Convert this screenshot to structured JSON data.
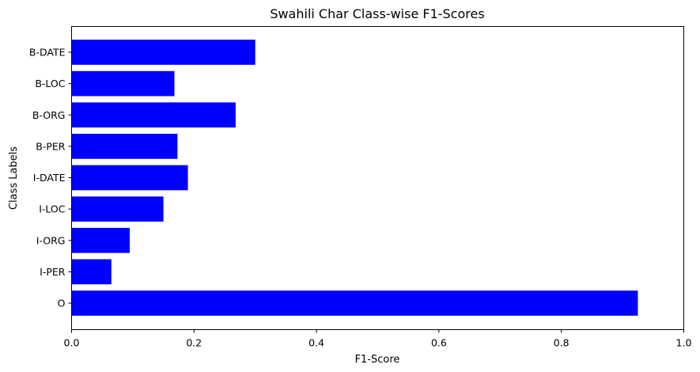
{
  "chart_data": {
    "type": "bar",
    "orientation": "horizontal",
    "title": "Swahili Char Class-wise F1-Scores",
    "xlabel": "F1-Score",
    "ylabel": "Class Labels",
    "categories": [
      "O",
      "I-PER",
      "I-ORG",
      "I-LOC",
      "I-DATE",
      "B-PER",
      "B-ORG",
      "B-LOC",
      "B-DATE"
    ],
    "values": [
      0.925,
      0.065,
      0.095,
      0.15,
      0.19,
      0.173,
      0.268,
      0.168,
      0.3
    ],
    "xlim": [
      0,
      1.0
    ],
    "xticks": [
      "0.0",
      "0.2",
      "0.4",
      "0.6",
      "0.8",
      "1.0"
    ],
    "xtick_values": [
      0,
      0.2,
      0.4,
      0.6,
      0.8,
      1.0
    ],
    "bar_color": "#0000ff",
    "grid": false,
    "legend": "none"
  }
}
